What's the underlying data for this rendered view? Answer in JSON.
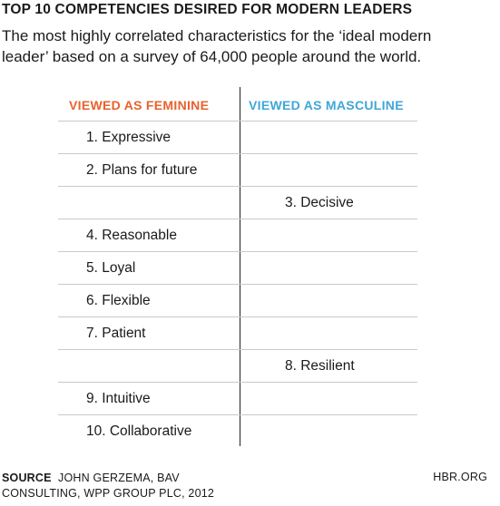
{
  "title": "TOP 10 COMPETENCIES DESIRED FOR MODERN LEADERS",
  "subtitle": {
    "line1": "The most highly correlated characteristics for the ‘ideal modern",
    "line2": "leader’ based on a survey of 64,000 people around the world."
  },
  "table": {
    "header_feminine": "VIEWED AS FEMININE",
    "header_masculine": "VIEWED AS MASCULINE",
    "colors": {
      "feminine": "#e8612c",
      "masculine": "#3fa6d8"
    },
    "rows": [
      {
        "feminine": "1. Expressive",
        "masculine": ""
      },
      {
        "feminine": "2. Plans for future",
        "masculine": ""
      },
      {
        "feminine": "",
        "masculine": "3. Decisive"
      },
      {
        "feminine": "4. Reasonable",
        "masculine": ""
      },
      {
        "feminine": "5. Loyal",
        "masculine": ""
      },
      {
        "feminine": "6. Flexible",
        "masculine": ""
      },
      {
        "feminine": "7. Patient",
        "masculine": ""
      },
      {
        "feminine": "",
        "masculine": "8. Resilient"
      },
      {
        "feminine": "9. Intuitive",
        "masculine": ""
      },
      {
        "feminine": "10. Collaborative",
        "masculine": ""
      }
    ]
  },
  "footer": {
    "source_label": "SOURCE",
    "source_line1": "JOHN GERZEMA, BAV",
    "source_line2": "CONSULTING, WPP GROUP PLC, 2012",
    "site": "HBR.ORG"
  }
}
